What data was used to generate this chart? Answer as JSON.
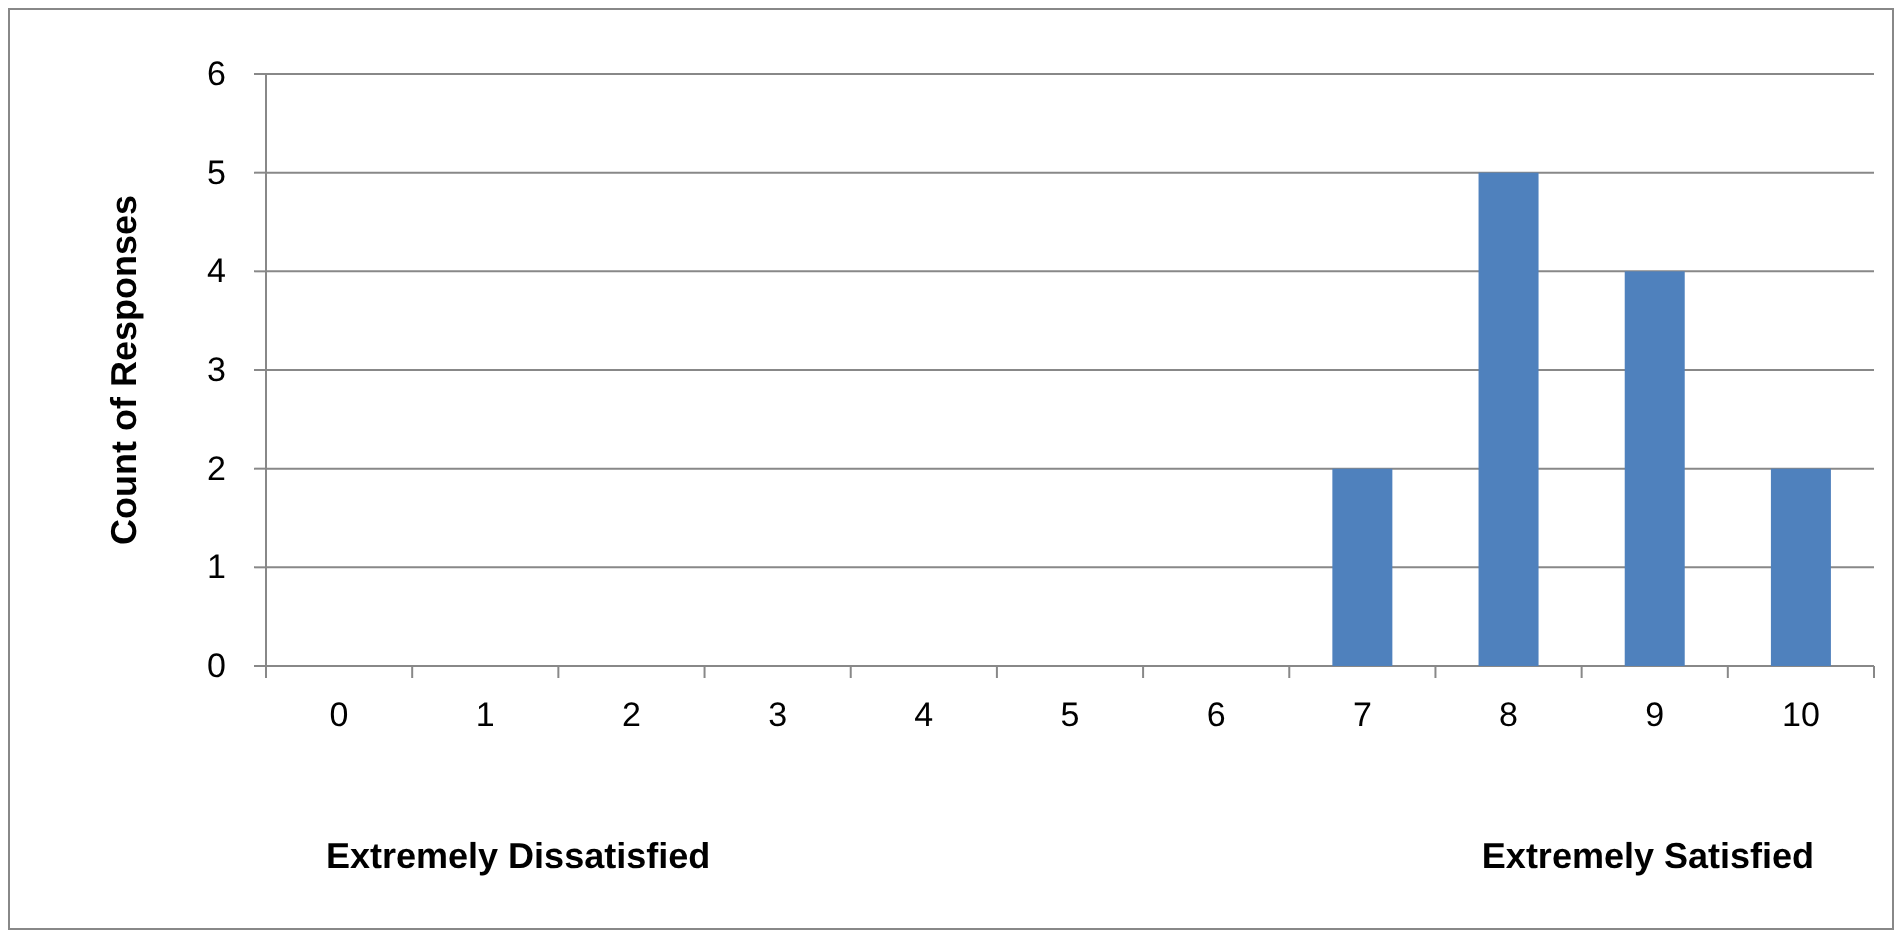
{
  "chart_data": {
    "type": "bar",
    "ylabel": "Count of Responses",
    "categories": [
      "0",
      "1",
      "2",
      "3",
      "4",
      "5",
      "6",
      "7",
      "8",
      "9",
      "10"
    ],
    "values": [
      0,
      0,
      0,
      0,
      0,
      0,
      0,
      2,
      5,
      4,
      2
    ],
    "color": "#4f81bd",
    "ylim": [
      0,
      6
    ],
    "yticks": [
      0,
      1,
      2,
      3,
      4,
      5,
      6
    ],
    "grid": "y",
    "annotations": [
      "Extremely Dissatisfied",
      "Extremely Satisfied"
    ]
  }
}
